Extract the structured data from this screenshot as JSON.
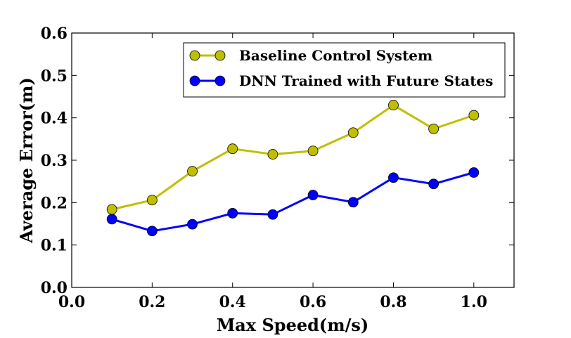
{
  "chart_data": {
    "type": "line",
    "title": "",
    "xlabel": "Max Speed(m/s)",
    "ylabel": "Average Error(m)",
    "xlim": [
      0.0,
      1.1
    ],
    "ylim": [
      0.0,
      0.6
    ],
    "xticks": [
      0.0,
      0.2,
      0.4,
      0.6,
      0.8,
      1.0
    ],
    "xtick_labels": [
      "0.0",
      "0.2",
      "0.4",
      "0.6",
      "0.8",
      "1.0"
    ],
    "yticks": [
      0.0,
      0.1,
      0.2,
      0.3,
      0.4,
      0.5,
      0.6
    ],
    "ytick_labels": [
      "0.0",
      "0.1",
      "0.2",
      "0.3",
      "0.4",
      "0.5",
      "0.6"
    ],
    "grid": false,
    "legend_position": "top-right",
    "x": [
      0.1,
      0.2,
      0.3,
      0.4,
      0.5,
      0.6,
      0.7,
      0.8,
      0.9,
      1.0
    ],
    "series": [
      {
        "name": "Baseline Control System",
        "color": "#bfbf00",
        "values": [
          0.184,
          0.206,
          0.274,
          0.327,
          0.314,
          0.322,
          0.365,
          0.43,
          0.374,
          0.406
        ]
      },
      {
        "name": "DNN Trained with Future States",
        "color": "#0000ff",
        "values": [
          0.161,
          0.133,
          0.149,
          0.175,
          0.172,
          0.218,
          0.201,
          0.259,
          0.244,
          0.271
        ]
      }
    ]
  }
}
